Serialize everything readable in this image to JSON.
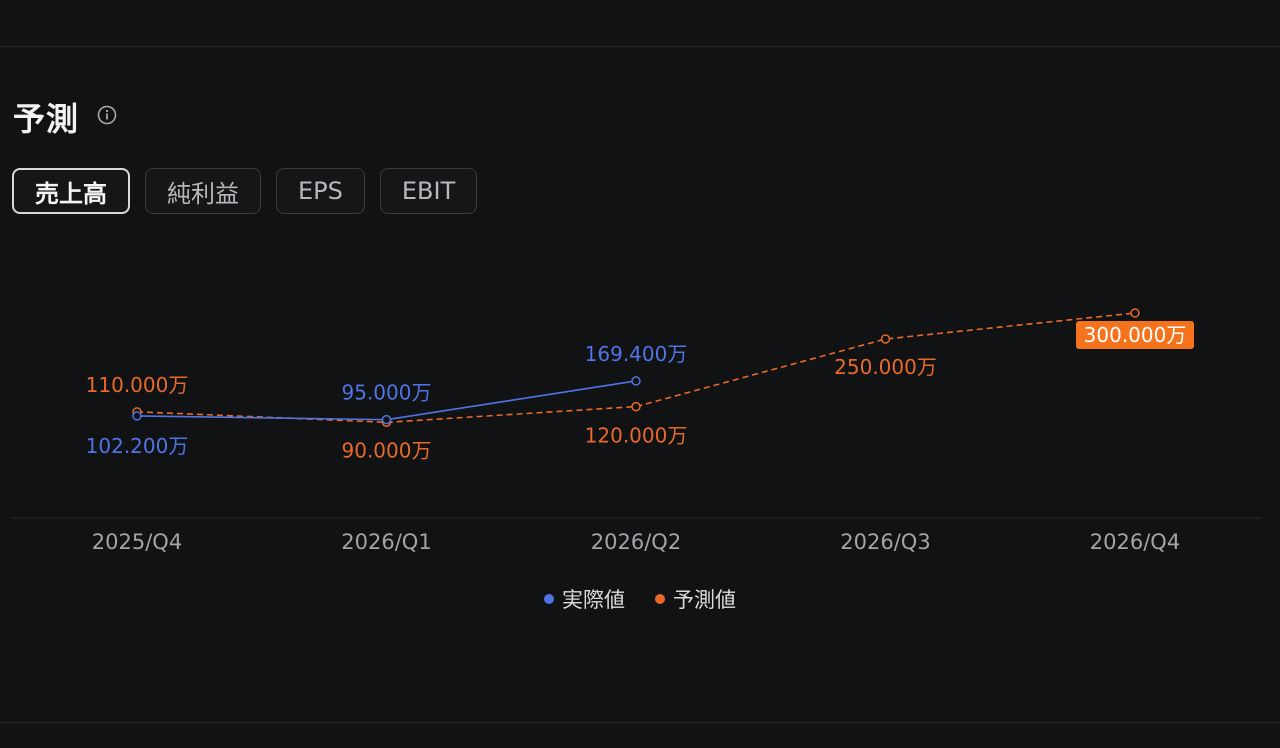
{
  "section": {
    "title": "予測"
  },
  "tabs": [
    {
      "label": "売上高",
      "active": true
    },
    {
      "label": "純利益",
      "active": false
    },
    {
      "label": "EPS",
      "active": false
    },
    {
      "label": "EBIT",
      "active": false
    }
  ],
  "colors": {
    "actual": "#4f74e6",
    "forecast": "#e8692a",
    "highlight_bg": "#f5731c",
    "axis": "#2a2b30",
    "tick": "#a3a4a8"
  },
  "icons": {
    "info": "info-circle-icon"
  },
  "chart_data": {
    "type": "line",
    "categories": [
      "2025/Q4",
      "2026/Q1",
      "2026/Q2",
      "2026/Q3",
      "2026/Q4"
    ],
    "series": [
      {
        "name": "実際値",
        "values": [
          102.2,
          95.0,
          169.4,
          null,
          null
        ],
        "labels": [
          "102.200万",
          "95.000万",
          "169.400万",
          null,
          null
        ],
        "line_style": "solid"
      },
      {
        "name": "予測値",
        "values": [
          110.0,
          90.0,
          120.0,
          250.0,
          300.0
        ],
        "labels": [
          "110.000万",
          "90.000万",
          "120.000万",
          "250.000万",
          "300.000万"
        ],
        "line_style": "dashed"
      }
    ],
    "highlighted_label": "300.000万",
    "legend_position": "bottom-center",
    "grid": false
  }
}
